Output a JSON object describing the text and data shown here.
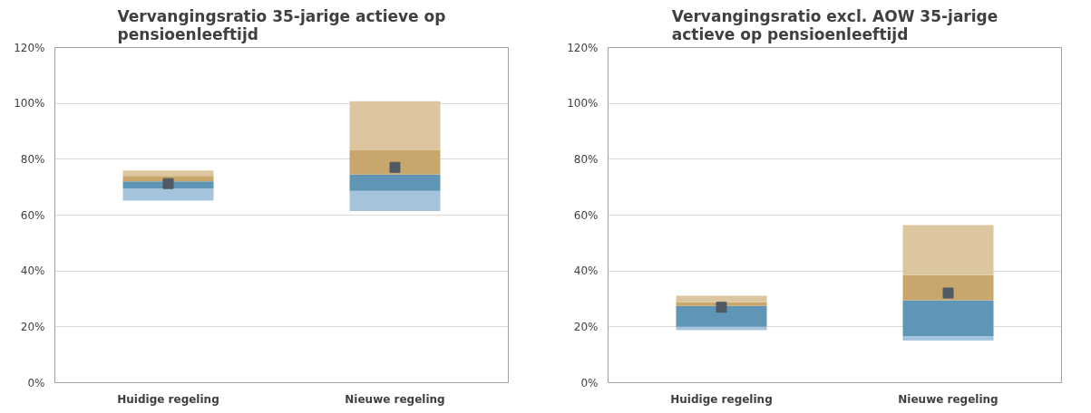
{
  "chart_data": [
    {
      "type": "bar",
      "title": "Vervangingsratio 35-jarige actieve op pensioenleeftijd",
      "categories": [
        "Huidige regeling",
        "Nieuwe regeling"
      ],
      "series": [
        {
          "color": "#a3c4dc",
          "base": [
            65.2,
            61.5
          ],
          "values": [
            4.4,
            7.2
          ]
        },
        {
          "color": "#5f95b5",
          "base": [
            69.6,
            68.7
          ],
          "values": [
            2.5,
            5.8
          ]
        },
        {
          "color": "#c9a66b",
          "base": [
            72.1,
            74.5
          ],
          "values": [
            1.9,
            8.7
          ]
        },
        {
          "color": "#dcc6a0",
          "base": [
            74.0,
            83.2
          ],
          "values": [
            2.0,
            17.6
          ]
        },
        {
          "type": "scatter",
          "marker": "square",
          "color": "#505a63",
          "x": [
            "Huidige regeling",
            "Nieuwe regeling"
          ],
          "values": [
            71.3,
            77.1
          ]
        }
      ],
      "ylim": [
        0,
        120
      ],
      "yticks": [
        {
          "value": 0,
          "label": "0%"
        },
        {
          "value": 20,
          "label": "20%"
        },
        {
          "value": 40,
          "label": "40%"
        },
        {
          "value": 60,
          "label": "60%"
        },
        {
          "value": 80,
          "label": "80%"
        },
        {
          "value": 100,
          "label": "100%"
        },
        {
          "value": 120,
          "label": "120%"
        }
      ],
      "grid": "y"
    },
    {
      "type": "bar",
      "title": "Vervangingsratio excl. AOW 35-jarige actieve op pensioenleeftijd",
      "categories": [
        "Huidige regeling",
        "Nieuwe regeling"
      ],
      "series": [
        {
          "color": "#a3c4dc",
          "base": [
            18.8,
            15.1
          ],
          "values": [
            1.2,
            1.5
          ]
        },
        {
          "color": "#5f95b5",
          "base": [
            20.0,
            16.6
          ],
          "values": [
            7.5,
            12.9
          ]
        },
        {
          "color": "#c9a66b",
          "base": [
            27.5,
            29.5
          ],
          "values": [
            1.4,
            9.0
          ]
        },
        {
          "color": "#dcc6a0",
          "base": [
            28.9,
            38.5
          ],
          "values": [
            2.2,
            17.9
          ]
        },
        {
          "type": "scatter",
          "marker": "square",
          "color": "#505a63",
          "x": [
            "Huidige regeling",
            "Nieuwe regeling"
          ],
          "values": [
            27.0,
            32.1
          ]
        }
      ],
      "ylim": [
        0,
        120
      ],
      "yticks": [
        {
          "value": 0,
          "label": "0%"
        },
        {
          "value": 20,
          "label": "20%"
        },
        {
          "value": 40,
          "label": "40%"
        },
        {
          "value": 60,
          "label": "60%"
        },
        {
          "value": 80,
          "label": "80%"
        },
        {
          "value": 100,
          "label": "100%"
        },
        {
          "value": 120,
          "label": "120%"
        }
      ],
      "grid": "y"
    }
  ]
}
